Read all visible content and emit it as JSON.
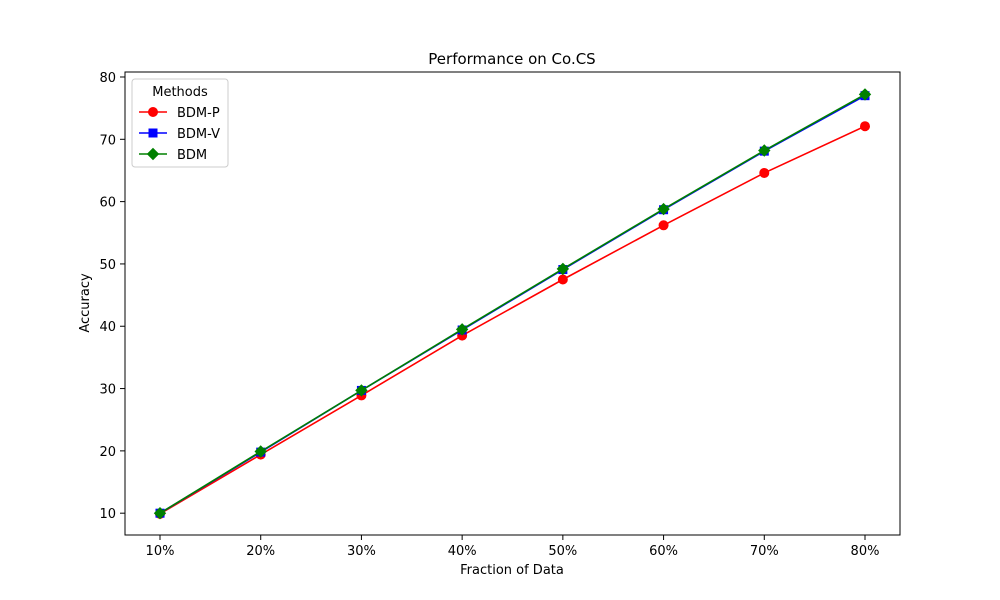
{
  "chart_data": {
    "type": "line",
    "title": "Performance on Co.CS",
    "xlabel": "Fraction of Data",
    "ylabel": "Accuracy",
    "categories": [
      "10%",
      "20%",
      "30%",
      "40%",
      "50%",
      "60%",
      "70%",
      "80%"
    ],
    "ylim": [
      6.5,
      80.8
    ],
    "yticks": [
      10,
      20,
      30,
      40,
      50,
      60,
      70,
      80
    ],
    "grid": false,
    "legend": {
      "title": "Methods",
      "placement": "top-left"
    },
    "series": [
      {
        "name": "BDM-P",
        "color": "#ff0000",
        "marker": "circle",
        "values": [
          9.9,
          19.4,
          28.9,
          38.5,
          47.5,
          56.2,
          64.6,
          72.1
        ]
      },
      {
        "name": "BDM-V",
        "color": "#0000ff",
        "marker": "square",
        "values": [
          10.0,
          19.8,
          29.7,
          39.4,
          49.1,
          58.7,
          68.1,
          77.0
        ]
      },
      {
        "name": "BDM",
        "color": "#008000",
        "marker": "diamond",
        "values": [
          10.0,
          19.9,
          29.7,
          39.5,
          49.2,
          58.8,
          68.2,
          77.2
        ]
      }
    ]
  }
}
